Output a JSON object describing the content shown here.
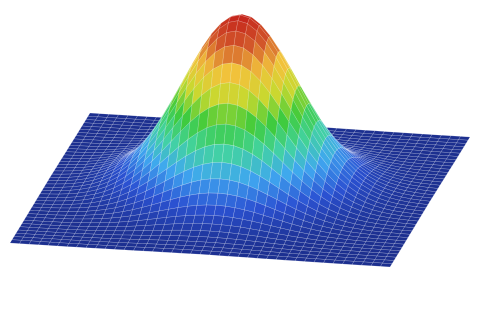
{
  "chart_data": {
    "type": "surface",
    "description_visible_text": "",
    "surface_function": "gaussian",
    "peak": {
      "x": 0,
      "y": 0,
      "z": 1.0
    },
    "x_range": [
      -1,
      1
    ],
    "y_range": [
      -1,
      1
    ],
    "z_range": [
      0,
      1
    ],
    "grid_lines": true,
    "colormap": [
      "#1c2f8f",
      "#2b52d3",
      "#3fa7f0",
      "#42d3a0",
      "#3fcb3b",
      "#c8d92f",
      "#f2c23b",
      "#d35a2b",
      "#c4221b"
    ]
  }
}
